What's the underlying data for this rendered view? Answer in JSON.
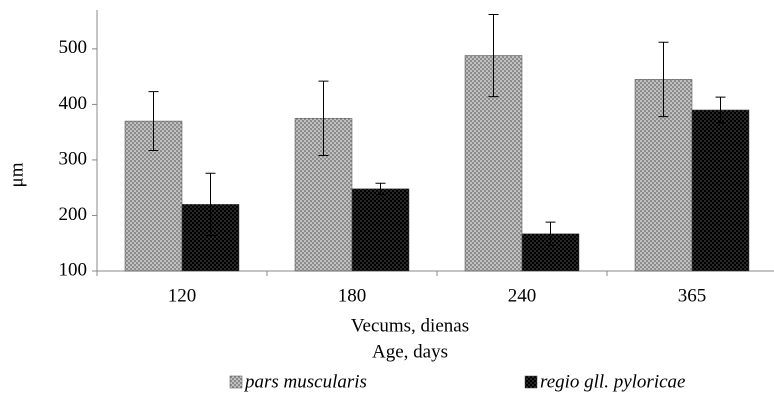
{
  "chart_data": {
    "type": "bar",
    "categories": [
      "120",
      "180",
      "240",
      "365"
    ],
    "series": [
      {
        "name": "pars muscularis",
        "color": "#9a9a9a",
        "values": [
          370,
          375,
          488,
          445
        ],
        "errors": [
          53,
          67,
          74,
          67
        ]
      },
      {
        "name": "regio gll. pyloricae",
        "color": "#1a1a1a",
        "values": [
          220,
          248,
          167,
          390
        ],
        "errors": [
          56,
          10,
          21,
          23
        ]
      }
    ],
    "ylabel": "μm",
    "xlabel": [
      "Vecums, dienas",
      "Age, days"
    ],
    "ylim": [
      100,
      570
    ],
    "yticks": [
      100,
      200,
      300,
      400,
      500
    ],
    "legend": "bottom"
  }
}
